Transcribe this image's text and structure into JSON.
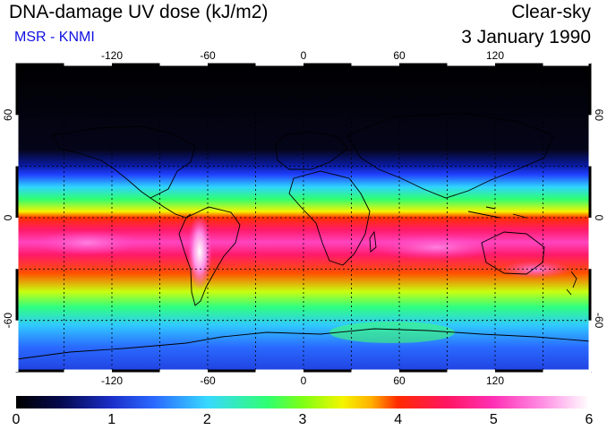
{
  "header": {
    "title": "DNA-damage UV dose (kJ/m2)",
    "subtitle": "MSR - KNMI",
    "condition": "Clear-sky",
    "date": "3 January 1990"
  },
  "map": {
    "lon_range": [
      -180,
      180
    ],
    "lat_range": [
      -90,
      90
    ],
    "lon_ticks": [
      -120,
      -60,
      0,
      60,
      120
    ],
    "lat_ticks": [
      60,
      0,
      -60
    ],
    "lon_tick_labels": [
      "-120",
      "-60",
      "0",
      "60",
      "120"
    ],
    "lat_tick_labels": [
      "60",
      "0",
      "-60"
    ]
  },
  "legend": {
    "min": 0,
    "max": 6,
    "labels": [
      "0",
      "1",
      "2",
      "3",
      "4",
      "5",
      "6"
    ]
  },
  "colors": {
    "subtitle": "#1010e0",
    "background": "#000000"
  }
}
